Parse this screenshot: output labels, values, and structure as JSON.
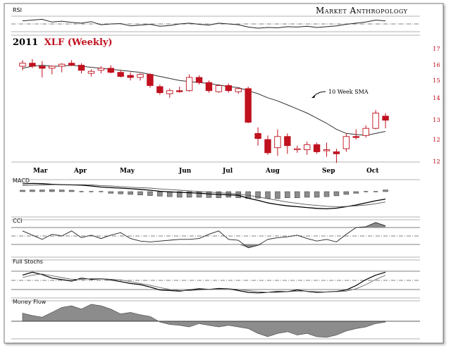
{
  "brand": "Market Anthropology",
  "chart_title_prefix": "2011",
  "chart_title": "XLF (Weekly)",
  "annotation": "10 Week SMA",
  "panels": {
    "rsi": "RSI",
    "macd": "MACD",
    "cci": "CCI",
    "stochs": "Full Stochs",
    "mfi": "Money Flow"
  },
  "colors": {
    "up": "#ffffff",
    "down": "#c0111f",
    "frame": "#9a9a9a",
    "fill": "#8c8c8c"
  },
  "chart_data": [
    {
      "type": "candlestick",
      "title": "2011 XLF (Weekly)",
      "x_ticks": [
        "Mar",
        "Apr",
        "May",
        "Jun",
        "Jul",
        "Aug",
        "Sep",
        "Oct"
      ],
      "y_ticks": [
        17,
        16,
        15,
        14,
        13,
        12
      ],
      "y_ticks_extra": [
        12
      ],
      "ylim": [
        11.7,
        17.2
      ],
      "candles": [
        {
          "o": 16.3,
          "h": 16.6,
          "l": 16.1,
          "c": 16.45
        },
        {
          "o": 16.45,
          "h": 16.65,
          "l": 16.2,
          "c": 16.3
        },
        {
          "o": 16.3,
          "h": 16.55,
          "l": 15.75,
          "c": 16.2
        },
        {
          "o": 16.2,
          "h": 16.35,
          "l": 15.9,
          "c": 16.3
        },
        {
          "o": 16.3,
          "h": 16.45,
          "l": 16.0,
          "c": 16.4
        },
        {
          "o": 16.45,
          "h": 16.6,
          "l": 16.3,
          "c": 16.35
        },
        {
          "o": 16.35,
          "h": 16.45,
          "l": 15.95,
          "c": 16.1
        },
        {
          "o": 15.95,
          "h": 16.15,
          "l": 15.8,
          "c": 16.05
        },
        {
          "o": 16.1,
          "h": 16.3,
          "l": 15.95,
          "c": 16.2
        },
        {
          "o": 16.2,
          "h": 16.35,
          "l": 15.95,
          "c": 16.0
        },
        {
          "o": 16.0,
          "h": 16.1,
          "l": 15.75,
          "c": 15.8
        },
        {
          "o": 15.85,
          "h": 16.0,
          "l": 15.6,
          "c": 15.75
        },
        {
          "o": 15.75,
          "h": 15.95,
          "l": 15.6,
          "c": 15.9
        },
        {
          "o": 15.9,
          "h": 15.95,
          "l": 15.25,
          "c": 15.35
        },
        {
          "o": 15.3,
          "h": 15.4,
          "l": 14.9,
          "c": 15.0
        },
        {
          "o": 14.95,
          "h": 15.2,
          "l": 14.75,
          "c": 15.1
        },
        {
          "o": 15.1,
          "h": 15.3,
          "l": 15.0,
          "c": 15.05
        },
        {
          "o": 15.1,
          "h": 15.9,
          "l": 15.05,
          "c": 15.75
        },
        {
          "o": 15.75,
          "h": 15.85,
          "l": 15.4,
          "c": 15.5
        },
        {
          "o": 15.5,
          "h": 15.6,
          "l": 15.0,
          "c": 15.1
        },
        {
          "o": 15.05,
          "h": 15.4,
          "l": 15.0,
          "c": 15.35
        },
        {
          "o": 15.35,
          "h": 15.45,
          "l": 15.0,
          "c": 15.1
        },
        {
          "o": 15.05,
          "h": 15.25,
          "l": 14.95,
          "c": 15.2
        },
        {
          "o": 15.2,
          "h": 15.3,
          "l": 13.5,
          "c": 13.55
        },
        {
          "o": 13.0,
          "h": 13.3,
          "l": 12.4,
          "c": 12.75
        },
        {
          "o": 12.7,
          "h": 12.9,
          "l": 11.95,
          "c": 12.05
        },
        {
          "o": 12.3,
          "h": 13.2,
          "l": 11.9,
          "c": 12.85
        },
        {
          "o": 12.85,
          "h": 13.0,
          "l": 12.0,
          "c": 12.4
        },
        {
          "o": 12.2,
          "h": 12.4,
          "l": 12.05,
          "c": 12.25
        },
        {
          "o": 12.2,
          "h": 12.6,
          "l": 11.95,
          "c": 12.45
        },
        {
          "o": 12.45,
          "h": 12.55,
          "l": 12.0,
          "c": 12.1
        },
        {
          "o": 12.15,
          "h": 12.55,
          "l": 11.85,
          "c": 12.2
        },
        {
          "o": 12.1,
          "h": 12.25,
          "l": 11.55,
          "c": 12.0
        },
        {
          "o": 12.25,
          "h": 13.0,
          "l": 12.1,
          "c": 12.85
        },
        {
          "o": 12.85,
          "h": 13.2,
          "l": 12.7,
          "c": 12.8
        },
        {
          "o": 12.9,
          "h": 13.4,
          "l": 12.8,
          "c": 13.25
        },
        {
          "o": 13.25,
          "h": 14.15,
          "l": 13.2,
          "c": 14.0
        },
        {
          "o": 13.85,
          "h": 14.0,
          "l": 13.25,
          "c": 13.65
        }
      ],
      "sma10": [
        16.2,
        16.3,
        16.35,
        16.3,
        16.3,
        16.35,
        16.3,
        16.25,
        16.2,
        16.15,
        16.1,
        16.05,
        16.0,
        15.9,
        15.8,
        15.7,
        15.6,
        15.55,
        15.5,
        15.45,
        15.38,
        15.3,
        15.25,
        15.1,
        14.95,
        14.75,
        14.6,
        14.4,
        14.2,
        14.0,
        13.75,
        13.5,
        13.2,
        13.0,
        12.95,
        12.9,
        13.0,
        13.1
      ]
    },
    {
      "type": "line",
      "title": "RSI",
      "values": [
        58,
        60,
        62,
        55,
        57,
        54,
        52,
        56,
        48,
        50,
        51,
        45,
        47,
        49,
        44,
        46,
        50,
        52,
        49,
        47,
        52,
        50,
        48,
        42,
        39,
        41,
        40,
        43,
        42,
        44,
        41,
        43,
        45,
        49,
        52,
        55,
        60,
        58
      ]
    },
    {
      "type": "bar+line",
      "title": "MACD",
      "histogram": [
        0.05,
        0.06,
        0.06,
        0.07,
        0.06,
        0.05,
        0.04,
        -0.02,
        -0.04,
        -0.06,
        -0.08,
        -0.1,
        -0.12,
        -0.14,
        -0.16,
        -0.18,
        -0.2,
        -0.2,
        -0.2,
        -0.21,
        -0.22,
        -0.2,
        -0.22,
        -0.24,
        -0.23,
        -0.24,
        -0.25,
        -0.22,
        -0.22,
        -0.2,
        -0.2,
        -0.18,
        -0.15,
        -0.1,
        -0.06,
        0.0,
        0.04,
        0.06
      ],
      "macd": [
        0.3,
        0.32,
        0.31,
        0.28,
        0.26,
        0.25,
        0.24,
        0.2,
        0.15,
        0.12,
        0.1,
        0.07,
        0.04,
        0.0,
        -0.05,
        -0.08,
        -0.1,
        -0.12,
        -0.14,
        -0.18,
        -0.2,
        -0.22,
        -0.24,
        -0.38,
        -0.48,
        -0.6,
        -0.68,
        -0.74,
        -0.78,
        -0.82,
        -0.86,
        -0.88,
        -0.85,
        -0.78,
        -0.7,
        -0.6,
        -0.5,
        -0.42
      ],
      "signal": [
        0.22,
        0.24,
        0.25,
        0.26,
        0.26,
        0.26,
        0.26,
        0.25,
        0.22,
        0.2,
        0.17,
        0.14,
        0.12,
        0.1,
        0.06,
        0.03,
        0.0,
        -0.03,
        -0.06,
        -0.09,
        -0.12,
        -0.15,
        -0.18,
        -0.24,
        -0.32,
        -0.4,
        -0.48,
        -0.56,
        -0.62,
        -0.68,
        -0.72,
        -0.76,
        -0.78,
        -0.77,
        -0.74,
        -0.7,
        -0.64,
        -0.56
      ]
    },
    {
      "type": "area",
      "title": "CCI",
      "values": [
        60,
        10,
        -40,
        20,
        0,
        60,
        -20,
        10,
        -30,
        10,
        40,
        -30,
        -60,
        -70,
        -60,
        -50,
        -40,
        -40,
        -30,
        20,
        60,
        -40,
        -50,
        -140,
        -110,
        -40,
        -20,
        -10,
        10,
        -30,
        -60,
        -40,
        -70,
        20,
        100,
        110,
        160,
        120
      ]
    },
    {
      "type": "line",
      "title": "Full Stochs",
      "k": [
        70,
        80,
        72,
        60,
        55,
        50,
        60,
        56,
        58,
        54,
        48,
        42,
        38,
        30,
        20,
        18,
        16,
        20,
        24,
        22,
        25,
        24,
        18,
        12,
        10,
        12,
        15,
        14,
        20,
        15,
        12,
        13,
        15,
        20,
        35,
        55,
        70,
        80
      ],
      "d": [
        62,
        70,
        74,
        68,
        62,
        56,
        56,
        58,
        58,
        56,
        54,
        48,
        42,
        36,
        28,
        22,
        18,
        18,
        20,
        22,
        23,
        24,
        22,
        18,
        14,
        12,
        12,
        14,
        16,
        16,
        14,
        13,
        14,
        16,
        24,
        38,
        55,
        70
      ]
    },
    {
      "type": "area",
      "title": "Money Flow",
      "values": [
        55,
        52,
        50,
        56,
        62,
        64,
        60,
        66,
        64,
        60,
        54,
        56,
        53,
        51,
        44,
        41,
        40,
        38,
        42,
        40,
        38,
        40,
        38,
        36,
        30,
        26,
        30,
        32,
        28,
        30,
        26,
        25,
        28,
        33,
        36,
        38,
        42,
        44
      ],
      "baseline": 45
    }
  ]
}
